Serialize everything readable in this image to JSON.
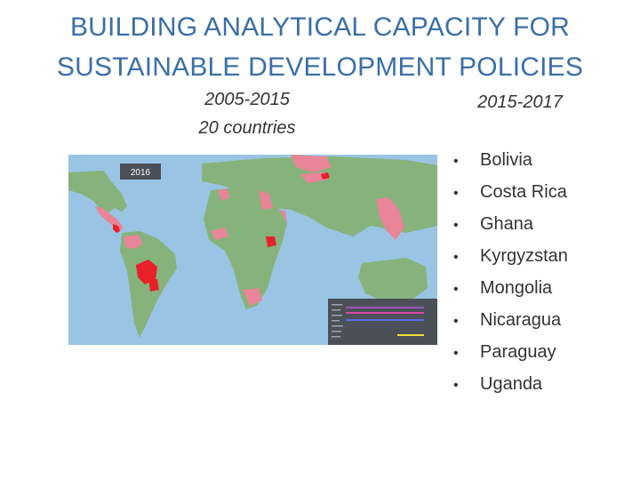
{
  "title": {
    "line1": "BUILDING ANALYTICAL CAPACITY FOR",
    "line2": "SUSTAINABLE DEVELOPMENT POLICIES"
  },
  "period_left": {
    "years": "2005-2015",
    "count": "20 countries"
  },
  "period_right": {
    "years": "2015-2017"
  },
  "map": {
    "year_label": "2016",
    "colors": {
      "ocean": "#9ac4e3",
      "land": "#86b37b",
      "partner": "#e88598",
      "current": "#e8202a",
      "legend_bg": "#4a4f58"
    },
    "legend_lines": [
      "#9b59b6",
      "#d946a8",
      "#5b6ee0",
      "#f0e040"
    ]
  },
  "countries": [
    {
      "bullet": "•",
      "name": "Bolivia"
    },
    {
      "bullet": "•",
      "name": "Costa Rica"
    },
    {
      "bullet": "•",
      "name": "Ghana"
    },
    {
      "bullet": "•",
      "name": "Kyrgyzstan"
    },
    {
      "bullet": "•",
      "name": "Mongolia"
    },
    {
      "bullet": "•",
      "name": "Nicaragua"
    },
    {
      "bullet": "•",
      "name": "Paraguay"
    },
    {
      "bullet": "•",
      "name": "Uganda"
    }
  ]
}
